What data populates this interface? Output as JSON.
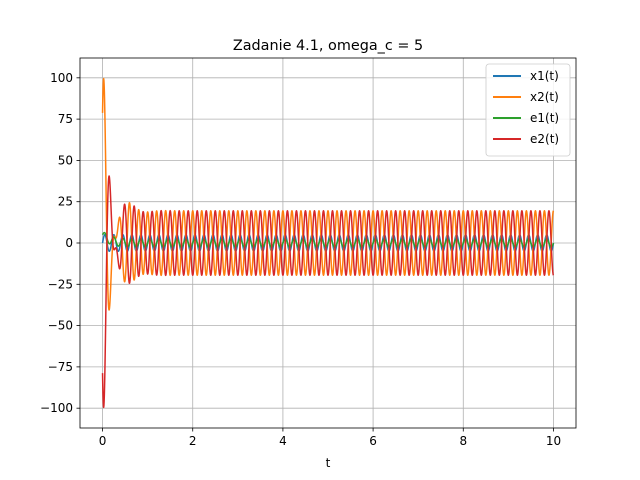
{
  "chart_data": {
    "type": "line",
    "title": "Zadanie 4.1, omega_c = 5",
    "xlabel": "t",
    "ylabel": "",
    "xlim": [
      -0.5,
      10.5
    ],
    "ylim": [
      -112,
      112
    ],
    "xticks": [
      0,
      2,
      4,
      6,
      8,
      10
    ],
    "yticks": [
      -100,
      -75,
      -50,
      -25,
      0,
      25,
      50,
      75,
      100
    ],
    "xtick_labels": [
      "0",
      "2",
      "4",
      "6",
      "8",
      "10"
    ],
    "ytick_labels": [
      "−100",
      "−75",
      "−50",
      "−25",
      "0",
      "25",
      "50",
      "75",
      "100"
    ],
    "grid": true,
    "legend_position": "upper right",
    "sampling": {
      "t_start": 0,
      "t_end": 10,
      "samples": 2001
    },
    "series": [
      {
        "name": "x1(t)",
        "color": "#1f77b4",
        "model": {
          "offset": 0,
          "amplitude": 5,
          "frequency_hz": 5,
          "phase": 0,
          "kind": "sin"
        }
      },
      {
        "name": "x2(t)",
        "color": "#ff7f0e",
        "model": {
          "offset": 0,
          "amplitude": 19.5,
          "frequency_hz": 5,
          "phase": 0,
          "kind": "cos",
          "transient": {
            "amplitude": 105,
            "decay": 5.0,
            "frequency_hz": 3.7,
            "kind": "sin",
            "sign": 1
          }
        }
      },
      {
        "name": "e1(t)",
        "color": "#2ca02c",
        "model": {
          "offset": 0,
          "amplitude": 2.5,
          "frequency_hz": 5,
          "phase": 0,
          "kind": "sin",
          "transient": {
            "amplitude": 5,
            "decay": 6.0,
            "frequency_hz": 0,
            "kind": "exp",
            "sign": 1
          }
        }
      },
      {
        "name": "e2(t)",
        "color": "#d62728",
        "model": {
          "offset": 0,
          "amplitude": 19.5,
          "frequency_hz": 5,
          "phase": 3.14159,
          "kind": "cos",
          "transient": {
            "amplitude": 105,
            "decay": 5.0,
            "frequency_hz": 3.7,
            "kind": "sin",
            "sign": -1
          }
        }
      }
    ]
  }
}
